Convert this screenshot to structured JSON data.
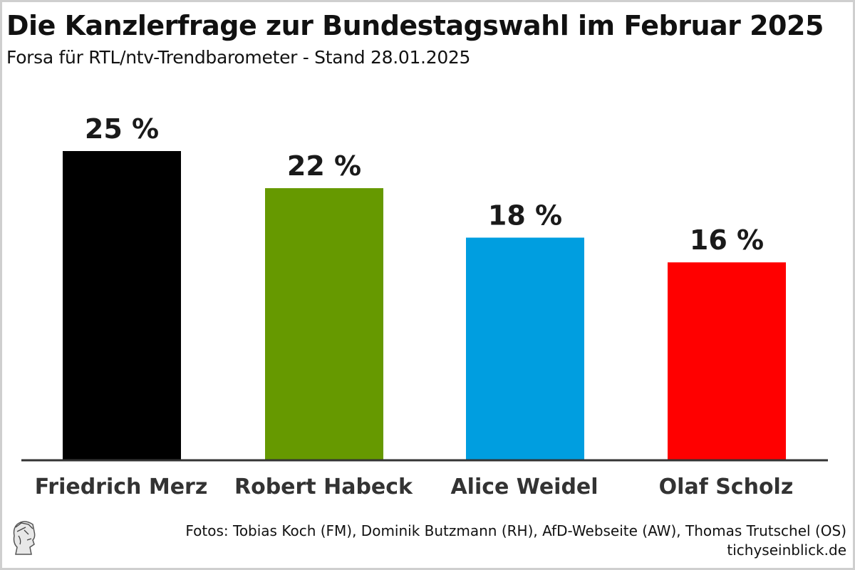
{
  "header": {
    "title": "Die Kanzlerfrage zur Bundestagswahl im Februar 2025",
    "subtitle": "Forsa für RTL/ntv-Trendbarometer - Stand 28.01.2025"
  },
  "chart_data": {
    "type": "bar",
    "title": "Die Kanzlerfrage zur Bundestagswahl im Februar 2025",
    "subtitle": "Forsa für RTL/ntv-Trendbarometer - Stand 28.01.2025",
    "xlabel": "",
    "ylabel": "",
    "ylim": [
      0,
      25
    ],
    "grid": false,
    "categories": [
      "Friedrich Merz",
      "Robert Habeck",
      "Alice Weidel",
      "Olaf Scholz"
    ],
    "values": [
      25,
      22,
      18,
      16
    ],
    "data_labels": [
      "25 %",
      "22 %",
      "18 %",
      "16 %"
    ],
    "colors": [
      "#000000",
      "#669900",
      "#009ee0",
      "#ff0000"
    ]
  },
  "footer": {
    "credits": "Fotos: Tobias Koch (FM), Dominik Butzmann (RH), AfD-Webseite (AW), Thomas Trutschel (OS)",
    "source": "tichyseinblick.de",
    "logo_icon": "hermes-head-logo-icon"
  }
}
